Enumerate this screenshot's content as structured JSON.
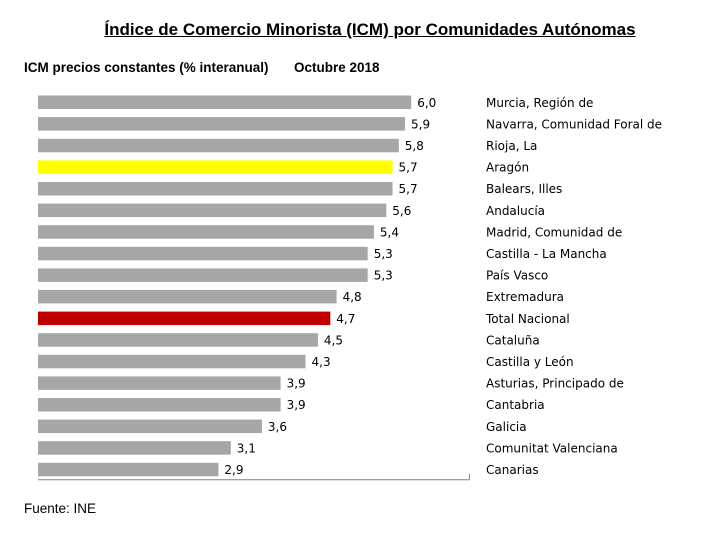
{
  "chart_data": {
    "type": "bar",
    "orientation": "horizontal",
    "title": "Índice de Comercio Minorista (ICM) por Comunidades Autónomas",
    "subtitle": "ICM precios constantes (% interanual)",
    "period": "Octubre 2018",
    "source": "Fuente: INE",
    "categories": [
      "Murcia, Región de",
      "Navarra, Comunidad Foral de",
      "Rioja, La",
      "Aragón",
      "Balears, Illes",
      "Andalucía",
      "Madrid, Comunidad de",
      "Castilla - La Mancha",
      "País Vasco",
      "Extremadura",
      "Total Nacional",
      "Cataluña",
      "Castilla y León",
      "Asturias, Principado de",
      "Cantabria",
      "Galicia",
      "Comunitat Valenciana",
      "Canarias"
    ],
    "values": [
      6.0,
      5.9,
      5.8,
      5.7,
      5.7,
      5.6,
      5.4,
      5.3,
      5.3,
      4.8,
      4.7,
      4.5,
      4.3,
      3.9,
      3.9,
      3.6,
      3.1,
      2.9
    ],
    "value_labels": [
      "6,0",
      "5,9",
      "5,8",
      "5,7",
      "5,7",
      "5,6",
      "5,4",
      "5,3",
      "5,3",
      "4,8",
      "4,7",
      "4,5",
      "4,3",
      "3,9",
      "3,9",
      "3,6",
      "3,1",
      "2,9"
    ],
    "bar_colors": [
      "#a6a6a6",
      "#a6a6a6",
      "#a6a6a6",
      "#ffff00",
      "#a6a6a6",
      "#a6a6a6",
      "#a6a6a6",
      "#a6a6a6",
      "#a6a6a6",
      "#a6a6a6",
      "#c00000",
      "#a6a6a6",
      "#a6a6a6",
      "#a6a6a6",
      "#a6a6a6",
      "#a6a6a6",
      "#a6a6a6",
      "#a6a6a6"
    ],
    "xlim": [
      0,
      7.0
    ],
    "grid": false,
    "legend": "none"
  }
}
